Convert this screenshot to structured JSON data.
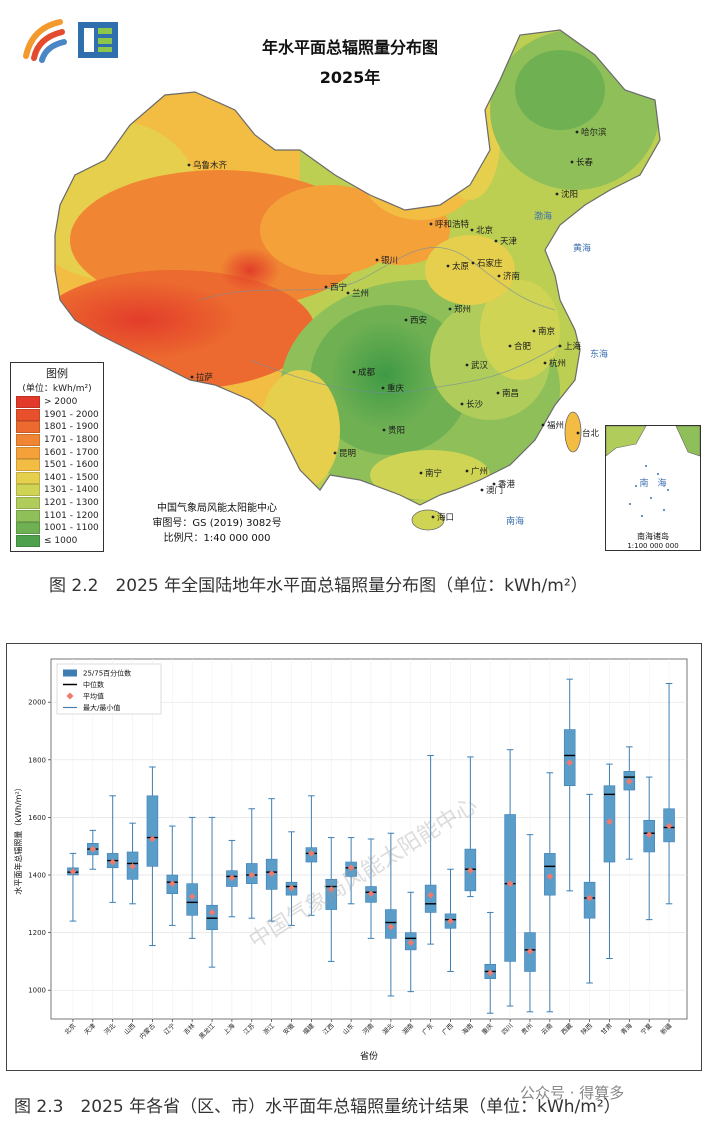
{
  "map": {
    "title_line1": "年水平面总辐照量分布图",
    "title_line2": "2025年",
    "legend_title": "图例",
    "legend_unit": "(单位：kWh/m²)",
    "legend_items": [
      {
        "label": "> 2000",
        "color": "#e23a2a"
      },
      {
        "label": "1901 - 2000",
        "color": "#e8502c"
      },
      {
        "label": "1801 - 1900",
        "color": "#ec6a2f"
      },
      {
        "label": "1701 - 1800",
        "color": "#f08533"
      },
      {
        "label": "1601 - 1700",
        "color": "#f4a13a"
      },
      {
        "label": "1501 - 1600",
        "color": "#f3bc43"
      },
      {
        "label": "1401 - 1500",
        "color": "#e6cf4c"
      },
      {
        "label": "1301 - 1400",
        "color": "#cfd455"
      },
      {
        "label": "1201 - 1300",
        "color": "#b0cc5a"
      },
      {
        "label": "1101 - 1200",
        "color": "#8fbf58"
      },
      {
        "label": "1001 - 1100",
        "color": "#6fb053"
      },
      {
        "label": "≤ 1000",
        "color": "#4fa04d"
      }
    ],
    "footer_org": "中国气象局风能太阳能中心",
    "footer_review": "审图号：GS (2019) 3082号",
    "footer_scale": "比例尺：1:40 000 000",
    "inset_label": "南海诸岛",
    "inset_scale": "1:100 000 000",
    "inset_sea_label": "南　海",
    "city_labels": [
      "乌鲁木齐",
      "拉萨",
      "西宁",
      "兰州",
      "银川",
      "呼和浩特",
      "北京",
      "天津",
      "太原",
      "石家庄",
      "济南",
      "郑州",
      "西安",
      "成都",
      "重庆",
      "贵阳",
      "昆明",
      "南宁",
      "海口",
      "长沙",
      "武汉",
      "南昌",
      "合肥",
      "南京",
      "上海",
      "杭州",
      "福州",
      "台北",
      "广州",
      "澳门",
      "香港",
      "长春",
      "哈尔滨",
      "沈阳"
    ],
    "sea_labels": [
      "渤海",
      "黄海",
      "东海",
      "南海"
    ]
  },
  "captions": {
    "figure_2_2": "图 2.2　2025 年全国陆地年水平面总辐照量分布图（单位：kWh/m²）",
    "figure_2_3": "图 2.3　2025 年各省（区、市）水平面年总辐照量统计结果（单位：kWh/m²）"
  },
  "chart_data": {
    "type": "box",
    "title": "",
    "xlabel": "省份",
    "ylabel": "水平面年总辐照量（kWh/m²）",
    "ylim": [
      900,
      2150
    ],
    "yticks": [
      1000,
      1200,
      1400,
      1600,
      1800,
      2000
    ],
    "grid": true,
    "legend_position": "top-left",
    "legend": [
      {
        "label": "25/75百分位数",
        "kind": "box",
        "color": "#3d7fb5"
      },
      {
        "label": "中位数",
        "kind": "line",
        "color": "#000000"
      },
      {
        "label": "平均值",
        "kind": "diamond",
        "color": "#f07a6e"
      },
      {
        "label": "最大/最小值",
        "kind": "whisker",
        "color": "#4a7fb0"
      }
    ],
    "categories": [
      "北京",
      "天津",
      "河北",
      "山西",
      "内蒙古",
      "辽宁",
      "吉林",
      "黑龙江",
      "上海",
      "江苏",
      "浙江",
      "安徽",
      "福建",
      "江西",
      "山东",
      "河南",
      "湖北",
      "湖南",
      "广东",
      "广西",
      "海南",
      "重庆",
      "四川",
      "贵州",
      "云南",
      "西藏",
      "陕西",
      "甘肃",
      "青海",
      "宁夏",
      "新疆"
    ],
    "series": [
      {
        "category": "北京",
        "min": 1240,
        "q1": 1400,
        "median": 1410,
        "q3": 1425,
        "max": 1475,
        "mean": 1412
      },
      {
        "category": "天津",
        "min": 1420,
        "q1": 1470,
        "median": 1490,
        "q3": 1510,
        "max": 1555,
        "mean": 1490
      },
      {
        "category": "河北",
        "min": 1305,
        "q1": 1425,
        "median": 1450,
        "q3": 1475,
        "max": 1675,
        "mean": 1445
      },
      {
        "category": "山西",
        "min": 1300,
        "q1": 1385,
        "median": 1440,
        "q3": 1480,
        "max": 1580,
        "mean": 1430
      },
      {
        "category": "内蒙古",
        "min": 1155,
        "q1": 1430,
        "median": 1530,
        "q3": 1675,
        "max": 1775,
        "mean": 1525
      },
      {
        "category": "辽宁",
        "min": 1225,
        "q1": 1335,
        "median": 1375,
        "q3": 1400,
        "max": 1570,
        "mean": 1370
      },
      {
        "category": "吉林",
        "min": 1180,
        "q1": 1260,
        "median": 1305,
        "q3": 1370,
        "max": 1600,
        "mean": 1325
      },
      {
        "category": "黑龙江",
        "min": 1080,
        "q1": 1210,
        "median": 1250,
        "q3": 1295,
        "max": 1600,
        "mean": 1270
      },
      {
        "category": "上海",
        "min": 1255,
        "q1": 1360,
        "median": 1395,
        "q3": 1415,
        "max": 1520,
        "mean": 1390
      },
      {
        "category": "江苏",
        "min": 1250,
        "q1": 1370,
        "median": 1400,
        "q3": 1440,
        "max": 1630,
        "mean": 1400
      },
      {
        "category": "浙江",
        "min": 1240,
        "q1": 1350,
        "median": 1410,
        "q3": 1455,
        "max": 1665,
        "mean": 1405
      },
      {
        "category": "安徽",
        "min": 1225,
        "q1": 1330,
        "median": 1360,
        "q3": 1375,
        "max": 1550,
        "mean": 1355
      },
      {
        "category": "福建",
        "min": 1260,
        "q1": 1445,
        "median": 1475,
        "q3": 1495,
        "max": 1675,
        "mean": 1475
      },
      {
        "category": "江西",
        "min": 1100,
        "q1": 1280,
        "median": 1360,
        "q3": 1385,
        "max": 1530,
        "mean": 1350
      },
      {
        "category": "山东",
        "min": 1300,
        "q1": 1395,
        "median": 1425,
        "q3": 1445,
        "max": 1530,
        "mean": 1425
      },
      {
        "category": "河南",
        "min": 1180,
        "q1": 1305,
        "median": 1340,
        "q3": 1360,
        "max": 1525,
        "mean": 1335
      },
      {
        "category": "湖北",
        "min": 980,
        "q1": 1180,
        "median": 1235,
        "q3": 1280,
        "max": 1545,
        "mean": 1220
      },
      {
        "category": "湖南",
        "min": 995,
        "q1": 1140,
        "median": 1180,
        "q3": 1200,
        "max": 1340,
        "mean": 1165
      },
      {
        "category": "广东",
        "min": 1160,
        "q1": 1270,
        "median": 1300,
        "q3": 1365,
        "max": 1815,
        "mean": 1330
      },
      {
        "category": "广西",
        "min": 1065,
        "q1": 1215,
        "median": 1245,
        "q3": 1265,
        "max": 1420,
        "mean": 1240
      },
      {
        "category": "海南",
        "min": 1325,
        "q1": 1345,
        "median": 1420,
        "q3": 1490,
        "max": 1810,
        "mean": 1415
      },
      {
        "category": "重庆",
        "min": 920,
        "q1": 1040,
        "median": 1065,
        "q3": 1090,
        "max": 1270,
        "mean": 1060
      },
      {
        "category": "四川",
        "min": 945,
        "q1": 1100,
        "median": 1370,
        "q3": 1610,
        "max": 1835,
        "mean": 1370
      },
      {
        "category": "贵州",
        "min": 925,
        "q1": 1065,
        "median": 1140,
        "q3": 1200,
        "max": 1540,
        "mean": 1135
      },
      {
        "category": "云南",
        "min": 925,
        "q1": 1330,
        "median": 1430,
        "q3": 1475,
        "max": 1755,
        "mean": 1395
      },
      {
        "category": "西藏",
        "min": 1345,
        "q1": 1710,
        "median": 1815,
        "q3": 1905,
        "max": 2080,
        "mean": 1790
      },
      {
        "category": "陕西",
        "min": 1025,
        "q1": 1250,
        "median": 1320,
        "q3": 1375,
        "max": 1680,
        "mean": 1320
      },
      {
        "category": "甘肃",
        "min": 1110,
        "q1": 1445,
        "median": 1680,
        "q3": 1710,
        "max": 1785,
        "mean": 1585
      },
      {
        "category": "青海",
        "min": 1455,
        "q1": 1695,
        "median": 1740,
        "q3": 1760,
        "max": 1845,
        "mean": 1725
      },
      {
        "category": "宁夏",
        "min": 1245,
        "q1": 1480,
        "median": 1545,
        "q3": 1590,
        "max": 1740,
        "mean": 1540
      },
      {
        "category": "新疆",
        "min": 1300,
        "q1": 1515,
        "median": 1565,
        "q3": 1630,
        "max": 2065,
        "mean": 1570
      }
    ],
    "colors": {
      "box": "#5b9dc9",
      "box_edge": "#3d7fb5",
      "whisker": "#3d7fb5",
      "median": "#000000",
      "mean": "#f07a6e"
    }
  },
  "watermarks": {
    "chart_overlay": "中国气象局风能太阳能中心",
    "bottom_right": "公众号 · 得算多"
  }
}
